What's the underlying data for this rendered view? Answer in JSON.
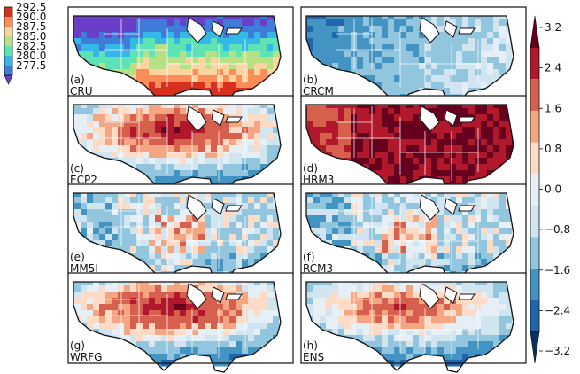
{
  "figure": {
    "left_colorbar": {
      "ticks": [
        "292.5",
        "290.0",
        "287.5",
        "285.0",
        "282.5",
        "280.0",
        "277.5"
      ],
      "colors": [
        "#d7301f",
        "#fc8d59",
        "#fdd49e",
        "#b8e186",
        "#5ee3b5",
        "#33b8e8",
        "#3f7bd9",
        "#6a3fc8"
      ]
    },
    "right_colorbar": {
      "ticks": [
        "3.2",
        "2.4",
        "1.6",
        "0.8",
        "0.0",
        "−0.8",
        "−1.6",
        "−2.4",
        "−3.2"
      ],
      "colors": [
        "#67001f",
        "#b2182b",
        "#d6604d",
        "#f4a582",
        "#fddbc7",
        "#e6eef6",
        "#d1e5f0",
        "#92c5de",
        "#4393c3",
        "#2166ac",
        "#053061"
      ]
    },
    "panels": [
      {
        "id": "a",
        "tag": "(a)",
        "name": "CRU",
        "pattern": "climatology"
      },
      {
        "id": "b",
        "tag": "(b)",
        "name": "CRCM",
        "pattern": "cool_west"
      },
      {
        "id": "c",
        "tag": "(c)",
        "name": "ECP2",
        "pattern": "warm_central"
      },
      {
        "id": "d",
        "tag": "(d)",
        "name": "HRM3",
        "pattern": "hot_all"
      },
      {
        "id": "e",
        "tag": "(e)",
        "name": "MM5I",
        "pattern": "cool_mixed"
      },
      {
        "id": "f",
        "tag": "(f)",
        "name": "RCM3",
        "pattern": "cool_mixed"
      },
      {
        "id": "g",
        "tag": "(g)",
        "name": "WRFG",
        "pattern": "warm_central"
      },
      {
        "id": "h",
        "tag": "(h)",
        "name": "ENS",
        "pattern": "warm_central_light"
      }
    ]
  },
  "chart_data": [
    {
      "type": "heatmap",
      "title": "",
      "panels": [
        "(a) CRU"
      ],
      "colorbar_ticks": [
        292.5,
        290.0,
        287.5,
        285.0,
        282.5,
        280.0,
        277.5
      ],
      "range": [
        277.5,
        292.5
      ]
    },
    {
      "type": "heatmap",
      "title": "",
      "panels": [
        "(b) CRCM",
        "(c) ECP2",
        "(d) HRM3",
        "(e) MM5I",
        "(f) RCM3",
        "(g) WRFG",
        "(h) ENS"
      ],
      "colorbar_ticks": [
        3.2,
        2.4,
        1.6,
        0.8,
        0.0,
        -0.8,
        -1.6,
        -2.4,
        -3.2
      ],
      "range": [
        -3.2,
        3.2
      ]
    }
  ]
}
